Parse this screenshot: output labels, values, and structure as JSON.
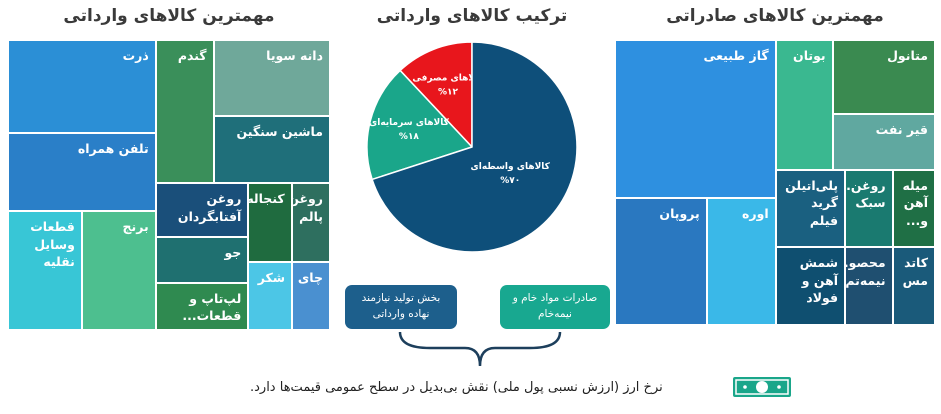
{
  "chart_data": [
    {
      "type": "treemap",
      "title": "مهمترین کالاهای وارداتی",
      "categories": [
        "ذرت",
        "تلفن همراه",
        "قطعات وسایل نقلیه",
        "برنج",
        "گندم",
        "دانه سویا",
        "ماشین سنگین",
        "روغن آفتابگردان",
        "جو",
        "لپ‌تاپ و قطعات...",
        "کنجاله",
        "روغن پالم",
        "شکر",
        "چای"
      ],
      "values": [
        13.7,
        11.6,
        8.8,
        8.8,
        8.3,
        8.8,
        7.9,
        5.0,
        4.2,
        4.4,
        3.4,
        3.0,
        3.0,
        2.6
      ],
      "colors": [
        "#2b8fd6",
        "#2a7fc8",
        "#38c6d6",
        "#4dbf8f",
        "#3a8f5a",
        "#6fa89a",
        "#1f6f7a",
        "#1a4f7a",
        "#1f7070",
        "#2f8a50",
        "#1f6b3f",
        "#2e6f5f",
        "#4cc6e6",
        "#4a90d0"
      ]
    },
    {
      "type": "pie",
      "title": "ترکیب کالاهای وارداتی",
      "categories": [
        "کالاهای مصرفی",
        "کالاهای سرمایه‌ای",
        "کالاهای واسطه‌ای"
      ],
      "values": [
        12,
        18,
        70
      ],
      "value_labels": [
        "%۱۲",
        "%۱۸",
        "%۷۰"
      ],
      "colors": [
        "#e8161c",
        "#1aa68a",
        "#0e4f7a"
      ]
    },
    {
      "type": "treemap",
      "title": "مهمترین کالاهای صادراتی",
      "categories": [
        "گاز طبیعی",
        "پروپان",
        "اوره",
        "بوتان",
        "متانول",
        "قیر نفت",
        "پلی‌اتیلن گرید فیلم",
        "شمش آهن و فولاد",
        "روغن... سبک",
        "میله آهن و...",
        "محصو... نیمه‌تم...",
        "کاتد مس"
      ],
      "values": [
        25.4,
        11.7,
        8.8,
        7.4,
        7.6,
        5.7,
        5.4,
        5.4,
        3.7,
        3.3,
        3.7,
        3.3
      ],
      "colors": [
        "#2e90e0",
        "#2a78c0",
        "#3ab8e8",
        "#3ab890",
        "#3a8a50",
        "#60a8a0",
        "#1a6080",
        "#0f4f70",
        "#1a7a70",
        "#1f6f45",
        "#1f4f70",
        "#1a5a7a"
      ]
    }
  ],
  "notes": [
    {
      "text": "بخش تولید نیازمند نهاده وارداتی",
      "color": "#1d5f8c"
    },
    {
      "text": "صادرات مواد خام و نیمه‌خام",
      "color": "#18a890"
    }
  ],
  "footer": "نرخ ارز (ارزش نسبی پول ملی) نقش بی‌بدیل در سطح عمومی قیمت‌ها دارد."
}
